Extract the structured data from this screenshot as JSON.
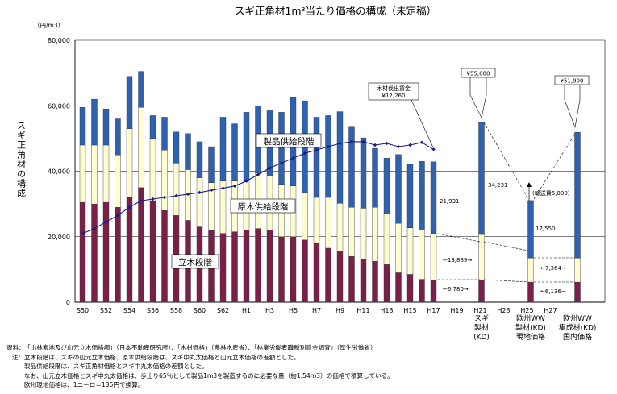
{
  "chart_data": {
    "type": "bar",
    "title": "スギ正角材1m³当たり価格の構成（未定稿）",
    "unit_label": "（円/m3）",
    "ylabel": "スギ正角材の構成",
    "ylim": [
      0,
      80000
    ],
    "yticks": [
      0,
      20000,
      40000,
      60000,
      80000
    ],
    "ytick_labels": [
      "0",
      "20,000",
      "40,000",
      "60,000",
      "80,000"
    ],
    "grid": true,
    "series": [
      {
        "name": "立木段階",
        "color": "#7a2048",
        "values": [
          30500,
          30000,
          30500,
          29000,
          32000,
          35000,
          31000,
          28000,
          26500,
          25000,
          23000,
          22000,
          21000,
          21500,
          22000,
          22500,
          22000,
          20000,
          20000,
          19000,
          18000,
          16500,
          15500,
          14000,
          13000,
          12500,
          11500,
          9000,
          8500,
          7000,
          6800
        ]
      },
      {
        "name": "原木供給段階",
        "color": "#fffdd0",
        "values": [
          17500,
          18000,
          17500,
          16000,
          21000,
          24500,
          19000,
          18500,
          16000,
          15500,
          15000,
          14500,
          16000,
          15500,
          15000,
          17000,
          16500,
          16000,
          15500,
          14500,
          14000,
          15500,
          14700,
          15000,
          15700,
          16500,
          15500,
          15100,
          14200,
          15000,
          14200
        ]
      },
      {
        "name": "製品供給段階",
        "color": "#2e62b0",
        "values": [
          11500,
          14000,
          11000,
          11000,
          16000,
          11000,
          7000,
          10000,
          9500,
          11000,
          11000,
          11000,
          19500,
          17500,
          21000,
          20500,
          20000,
          22000,
          27000,
          28000,
          24500,
          25000,
          28000,
          24500,
          21500,
          18000,
          17000,
          21000,
          19400,
          21000,
          21900
        ]
      }
    ],
    "line_series": {
      "name": "木材伐出賃金",
      "color": "#1a1a8c",
      "values": [
        21000,
        22500,
        24500,
        26500,
        29000,
        31000,
        31500,
        32000,
        32500,
        33000,
        33500,
        34200,
        34800,
        35500,
        37000,
        39000,
        41000,
        42500,
        44000,
        45500,
        46500,
        47500,
        48500,
        49000,
        49000,
        48000,
        48500,
        47500,
        48000,
        48800,
        46700
      ]
    },
    "comparison_bars": [
      {
        "group": "スギ製材(KD)",
        "label_lines": [
          "スギ",
          "製材",
          "(KD)"
        ],
        "bottom": 6780,
        "middle": 13889,
        "top": 34231,
        "total_label": "¥55,000"
      },
      {
        "group": "欧州WW製材(KD)現地価格",
        "label_lines": [
          "欧州WW",
          "製材(KD)",
          "現地価格"
        ],
        "bottom": 6136,
        "middle": 7364,
        "top": 17550
      },
      {
        "group": "欧州WW集成材(KD)国内価格",
        "label_lines": [
          "欧州WW",
          "集成材(KD)",
          "国内価格"
        ],
        "bottom": 6136,
        "middle": 7364,
        "top": 38400,
        "total_label": "¥51,900"
      }
    ],
    "x_tick_labels": [
      "S50",
      "S52",
      "S54",
      "S56",
      "S58",
      "S60",
      "S62",
      "H1",
      "H3",
      "H5",
      "H7",
      "H9",
      "H11",
      "H13",
      "H15",
      "H17",
      "H19",
      "H21",
      "H23",
      "H25",
      "H27"
    ],
    "annotations": {
      "wage_title": "木材伐出賃金",
      "wage_value": "¥12,260",
      "product_label": "製品供給段階",
      "log_label": "原木供給段階",
      "standing_label": "立木段階",
      "v21931": "21,931",
      "v13889": "←13,889→",
      "v6780": "←6,780→",
      "v34231": "34,231",
      "shipping": "(輸送費6,000)",
      "v17550": "17,550",
      "v7364": "←7,364→",
      "v6136": "←6,136→",
      "v55000": "¥55,000",
      "v51900": "¥51,900"
    }
  },
  "notes": {
    "source_label": "資料：",
    "source_text": "「山林素地及び山元立木価格調」（日本不動産研究所）、「木材価格」（農林水産省）、「林業労働者職種別賃金調査」（厚生労働省）",
    "note_label": "注：",
    "note_lines": [
      "立木段階は、スギの山元立木価格、原木供給段階は、スギ中丸太価格と山元立木価格の差額とした。",
      "製品供給段階は、スギ正角材価格とスギ中丸太価格の差額とした。",
      "なお、山元立木価格とスギ中丸太価格は、歩止り65％として製品1m3を製造するのに必要な量（約1.54m3）の価格で積算している。",
      "欧州現地価格は、1ユーロ＝135円で換算。"
    ]
  }
}
